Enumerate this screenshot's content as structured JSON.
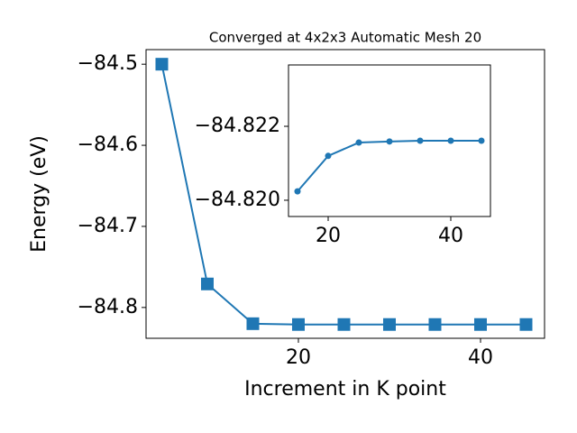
{
  "chart_data": [
    {
      "type": "line",
      "title": "Converged at 4x2x3 Automatic Mesh 20",
      "x_label": "Increment in K point",
      "y_label": "Energy (eV)",
      "x": [
        5,
        10,
        15,
        20,
        25,
        30,
        35,
        40,
        45
      ],
      "series": [
        {
          "color": "#1f77b4",
          "marker": "square",
          "values": [
            -84.5,
            -84.771,
            -84.82,
            -84.821,
            -84.821,
            -84.821,
            -84.821,
            -84.821,
            -84.821
          ]
        }
      ],
      "xlim": [
        3.27,
        47.03
      ],
      "ylim": [
        -84.838,
        -84.482
      ],
      "xticks": [
        20,
        40
      ],
      "yticks": [
        {
          "value": -84.5,
          "label": "−84.5"
        },
        {
          "value": -84.6,
          "label": "−84.6"
        },
        {
          "value": -84.7,
          "label": "−84.7"
        },
        {
          "value": -84.8,
          "label": "−84.8"
        }
      ]
    },
    {
      "type": "line",
      "x": [
        15,
        20,
        25,
        30,
        35,
        40,
        45
      ],
      "series": [
        {
          "color": "#1f77b4",
          "marker": "circle",
          "values": [
            -84.82024,
            -84.8212,
            -84.82156,
            -84.82159,
            -84.82161,
            -84.82161,
            -84.82161
          ]
        }
      ],
      "xlim": [
        13.53,
        46.47
      ],
      "ylim": [
        -84.81956,
        -84.82366
      ],
      "xticks": [
        20,
        40
      ],
      "yticks": [
        {
          "value": -84.822,
          "label": "−84.822"
        },
        {
          "value": -84.82,
          "label": "−84.820"
        }
      ]
    }
  ]
}
